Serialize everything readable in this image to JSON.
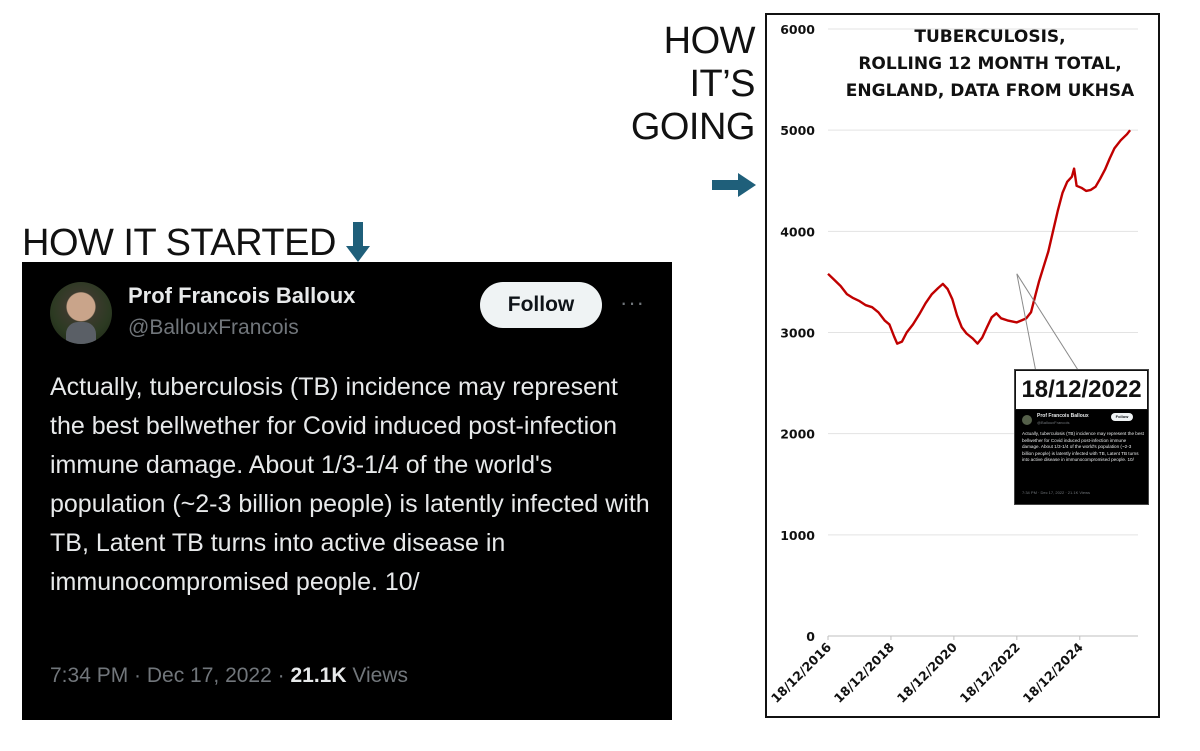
{
  "labels": {
    "going_lines": [
      "HOW",
      "IT’S",
      "GOING"
    ],
    "started": "HOW IT STARTED"
  },
  "tweet": {
    "name": "Prof Francois Balloux",
    "handle": "@BallouxFrancois",
    "follow_label": "Follow",
    "more": "···",
    "text": "Actually, tuberculosis (TB) incidence may represent the best bellwether for Covid induced post-infection immune damage. About 1/3-1/4 of the world's population (~2-3 billion people) is latently infected with TB, Latent TB turns into active disease in immunocompromised people. 10/",
    "time": "7:34 PM · Dec 17, 2022 · ",
    "views_count": "21.1K",
    "views_label": " Views"
  },
  "inset": {
    "date": "18/12/2022",
    "name": "Prof Francois Balloux",
    "handle": "@BallouxFrancois",
    "follow": "Follow",
    "text": "Actually, tuberculosis (TB) incidence may represent the best bellwether for Covid induced post-infection immune damage. About 1/3-1/4 of the world's population (~2-3 billion people) is latently infected with TB, Latent TB turns into active disease in immunocompromised people. 10/",
    "meta": "7:34 PM · Dec 17, 2022 · 21.1K Views"
  },
  "colors": {
    "line": "#c00000",
    "arrow": "#1f5f7a",
    "tweet_bg": "#000000"
  },
  "chart_data": {
    "type": "line",
    "title_lines": [
      "TUBERCULOSIS,",
      "ROLLING 12 MONTH TOTAL,",
      "ENGLAND, DATA FROM UKHSA"
    ],
    "ylim": [
      0,
      6000
    ],
    "yticks": [
      0,
      1000,
      2000,
      3000,
      4000,
      5000,
      6000
    ],
    "xticks": [
      "18/12/2016",
      "18/12/2018",
      "18/12/2020",
      "18/12/2022",
      "18/12/2024"
    ],
    "grid": true,
    "series": [
      {
        "values_by_year": [
          [
            2016.0,
            3580
          ],
          [
            2016.2,
            3520
          ],
          [
            2016.4,
            3460
          ],
          [
            2016.6,
            3380
          ],
          [
            2016.8,
            3340
          ],
          [
            2017.0,
            3310
          ],
          [
            2017.2,
            3270
          ],
          [
            2017.4,
            3250
          ],
          [
            2017.6,
            3200
          ],
          [
            2017.8,
            3120
          ],
          [
            2017.95,
            3080
          ],
          [
            2018.1,
            2960
          ],
          [
            2018.2,
            2890
          ],
          [
            2018.35,
            2910
          ],
          [
            2018.5,
            3000
          ],
          [
            2018.7,
            3080
          ],
          [
            2018.9,
            3180
          ],
          [
            2019.1,
            3290
          ],
          [
            2019.3,
            3380
          ],
          [
            2019.5,
            3440
          ],
          [
            2019.65,
            3480
          ],
          [
            2019.8,
            3430
          ],
          [
            2019.95,
            3330
          ],
          [
            2020.1,
            3170
          ],
          [
            2020.25,
            3050
          ],
          [
            2020.4,
            2990
          ],
          [
            2020.6,
            2940
          ],
          [
            2020.75,
            2890
          ],
          [
            2020.9,
            2950
          ],
          [
            2021.05,
            3050
          ],
          [
            2021.2,
            3150
          ],
          [
            2021.35,
            3190
          ],
          [
            2021.5,
            3140
          ],
          [
            2021.7,
            3120
          ],
          [
            2021.85,
            3110
          ],
          [
            2022.0,
            3100
          ],
          [
            2022.15,
            3120
          ],
          [
            2022.3,
            3140
          ],
          [
            2022.45,
            3200
          ],
          [
            2022.6,
            3380
          ],
          [
            2022.7,
            3500
          ],
          [
            2022.85,
            3650
          ],
          [
            2023.0,
            3800
          ],
          [
            2023.15,
            4000
          ],
          [
            2023.3,
            4200
          ],
          [
            2023.45,
            4380
          ],
          [
            2023.6,
            4490
          ],
          [
            2023.75,
            4540
          ],
          [
            2023.82,
            4620
          ],
          [
            2023.9,
            4450
          ],
          [
            2024.05,
            4430
          ],
          [
            2024.2,
            4400
          ],
          [
            2024.35,
            4410
          ],
          [
            2024.5,
            4440
          ],
          [
            2024.65,
            4520
          ],
          [
            2024.8,
            4610
          ],
          [
            2024.95,
            4720
          ],
          [
            2025.1,
            4820
          ],
          [
            2025.3,
            4900
          ],
          [
            2025.5,
            4960
          ],
          [
            2025.6,
            5000
          ]
        ]
      }
    ]
  }
}
